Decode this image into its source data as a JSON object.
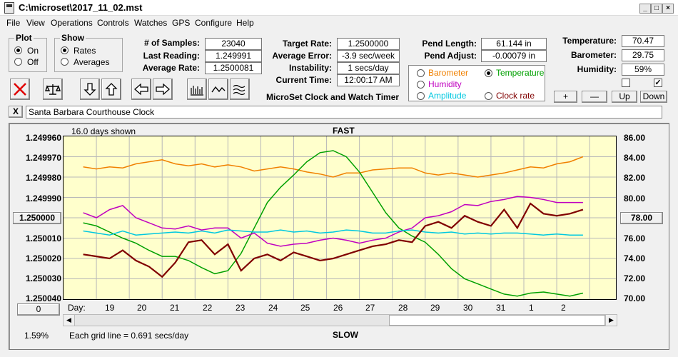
{
  "window": {
    "title": "C:\\microset\\2017_11_02.mst"
  },
  "menu": [
    "File",
    "View",
    "Operations",
    "Controls",
    "Watches",
    "GPS",
    "Configure",
    "Help"
  ],
  "plot_group": {
    "title": "Plot",
    "options": [
      "On",
      "Off"
    ],
    "selected": "On"
  },
  "show_group": {
    "title": "Show",
    "options": [
      "Rates",
      "Averages"
    ],
    "selected": "Rates"
  },
  "stats": [
    {
      "label": "# of Samples:",
      "value": "23040"
    },
    {
      "label": "Last Reading:",
      "value": "1.249991"
    },
    {
      "label": "Average Rate:",
      "value": "1.2500081"
    }
  ],
  "rates": [
    {
      "label": "Target Rate:",
      "value": "1.2500000"
    },
    {
      "label": "Average Error:",
      "value": "-3.9 sec/week"
    },
    {
      "label": "Instability:",
      "value": "1 secs/day"
    },
    {
      "label": "Current Time:",
      "value": "12:00:17 AM"
    }
  ],
  "app_caption": "MicroSet Clock and Watch Timer",
  "pend": [
    {
      "label": "Pend Length:",
      "value": "61.144 in"
    },
    {
      "label": "Pend Adjust:",
      "value": "-0.00079 in"
    }
  ],
  "env": [
    {
      "label": "Temperature:",
      "value": "70.47"
    },
    {
      "label": "Barometer:",
      "value": "29.75"
    },
    {
      "label": "Humidity:",
      "value": "59%"
    }
  ],
  "aux_options": [
    {
      "label": "Barometer",
      "color": "#f08000",
      "selected": false
    },
    {
      "label": "Temperature",
      "color": "#00a000",
      "selected": true
    },
    {
      "label": "Humidity",
      "color": "#c000c0",
      "selected": false
    },
    {
      "label": "Amplitude",
      "color": "#00c8e0",
      "selected": false
    },
    {
      "label": "Clock rate",
      "color": "#800000",
      "selected": false
    }
  ],
  "scale_buttons": {
    "plus": "+",
    "minus": "—",
    "up": "Up",
    "down": "Down"
  },
  "checkboxes": {
    "left": false,
    "right": true
  },
  "clock_name": "Santa Barbara Courthouse Clock",
  "close_x": "X",
  "plot": {
    "days_shown": "16.0 days shown",
    "top_label": "FAST",
    "bottom_label": "SLOW",
    "left_axis": [
      "1.249960",
      "1.249970",
      "1.249980",
      "1.249990",
      "1.250000",
      "1.250010",
      "1.250020",
      "1.250030",
      "1.250040"
    ],
    "left_center_button": "1.250000",
    "right_axis": [
      "86.00",
      "84.00",
      "82.00",
      "80.00",
      "78.00",
      "76.00",
      "74.00",
      "72.00",
      "70.00"
    ],
    "right_center_button": "78.00",
    "day_caption": "Day:",
    "days": [
      "19",
      "20",
      "21",
      "22",
      "23",
      "24",
      "25",
      "26",
      "27",
      "28",
      "29",
      "30",
      "31",
      "1",
      "2"
    ],
    "bottom_left_button": "0",
    "percent": "1.59%",
    "grid_note": "Each grid line = 0.691 secs/day"
  },
  "chart_data": {
    "type": "line",
    "x": [
      18.6,
      19.0,
      19.4,
      19.8,
      20.2,
      20.6,
      21.0,
      21.4,
      21.8,
      22.2,
      22.6,
      23.0,
      23.4,
      23.8,
      24.2,
      24.6,
      25.0,
      25.4,
      25.8,
      26.2,
      26.6,
      27.0,
      27.4,
      27.8,
      28.2,
      28.6,
      29.0,
      29.4,
      29.8,
      30.2,
      30.6,
      31.0,
      31.4,
      31.8,
      32.2,
      32.6,
      33.0,
      33.4,
      33.8
    ],
    "series": [
      {
        "name": "Clock rate",
        "color": "#800000",
        "axis": "left",
        "values": [
          1.250018,
          1.250019,
          1.25002,
          1.250016,
          1.250021,
          1.250024,
          1.250029,
          1.250022,
          1.250012,
          1.250011,
          1.250018,
          1.250013,
          1.250026,
          1.25002,
          1.250018,
          1.250021,
          1.250017,
          1.250019,
          1.250021,
          1.25002,
          1.250018,
          1.250016,
          1.250014,
          1.250013,
          1.250011,
          1.250012,
          1.250004,
          1.250002,
          1.250005,
          1.249999,
          1.250002,
          1.250004,
          1.249996,
          1.250005,
          1.249993,
          1.249998,
          1.249999,
          1.249998,
          1.249996
        ]
      },
      {
        "name": "Barometer",
        "color": "#f08000",
        "axis": "right",
        "values": [
          83.0,
          82.8,
          83.0,
          82.9,
          83.3,
          83.5,
          83.7,
          83.3,
          83.1,
          83.3,
          83.0,
          83.2,
          83.0,
          82.6,
          82.8,
          83.0,
          82.8,
          82.5,
          82.3,
          82.0,
          82.4,
          82.4,
          82.7,
          82.8,
          82.9,
          82.9,
          82.4,
          82.2,
          82.4,
          82.2,
          82.0,
          82.2,
          82.4,
          82.7,
          83.0,
          82.9,
          83.3,
          83.5,
          84.0
        ]
      },
      {
        "name": "Temperature",
        "color": "#00a000",
        "axis": "right",
        "values": [
          77.5,
          77.2,
          76.6,
          76.0,
          75.5,
          74.8,
          74.2,
          74.2,
          73.8,
          73.1,
          72.5,
          72.8,
          74.5,
          77.0,
          79.5,
          81.0,
          82.2,
          83.5,
          84.4,
          84.6,
          84.0,
          82.5,
          80.5,
          78.5,
          77.0,
          76.2,
          75.6,
          74.4,
          73.0,
          72.0,
          71.5,
          71.0,
          70.5,
          70.3,
          70.6,
          70.7,
          70.5,
          70.3,
          70.6
        ]
      },
      {
        "name": "Humidity",
        "color": "#c000c0",
        "axis": "right",
        "values": [
          78.5,
          78.0,
          78.8,
          79.2,
          78.0,
          77.5,
          77.0,
          76.9,
          77.2,
          76.8,
          77.0,
          77.0,
          76.0,
          76.5,
          75.5,
          75.2,
          75.4,
          75.5,
          75.8,
          76.0,
          75.8,
          75.5,
          75.8,
          76.0,
          76.6,
          77.0,
          78.0,
          78.2,
          78.6,
          79.3,
          79.2,
          79.6,
          79.8,
          80.1,
          80.0,
          79.8,
          79.5,
          79.5,
          79.5
        ]
      },
      {
        "name": "Amplitude",
        "color": "#00c8e0",
        "axis": "right",
        "values": [
          76.7,
          76.5,
          76.3,
          76.7,
          76.3,
          76.4,
          76.5,
          76.6,
          76.5,
          76.7,
          76.5,
          76.8,
          76.7,
          76.6,
          76.6,
          76.8,
          76.6,
          76.7,
          76.5,
          76.6,
          76.8,
          76.7,
          76.5,
          76.5,
          76.7,
          76.8,
          76.6,
          76.5,
          76.6,
          76.4,
          76.5,
          76.4,
          76.5,
          76.5,
          76.4,
          76.3,
          76.4,
          76.3,
          76.3
        ]
      }
    ],
    "ylim_left": [
      1.25004,
      1.24996
    ],
    "ylim_right": [
      70,
      86
    ],
    "xlim": [
      18,
      34.8
    ],
    "grid": true
  }
}
